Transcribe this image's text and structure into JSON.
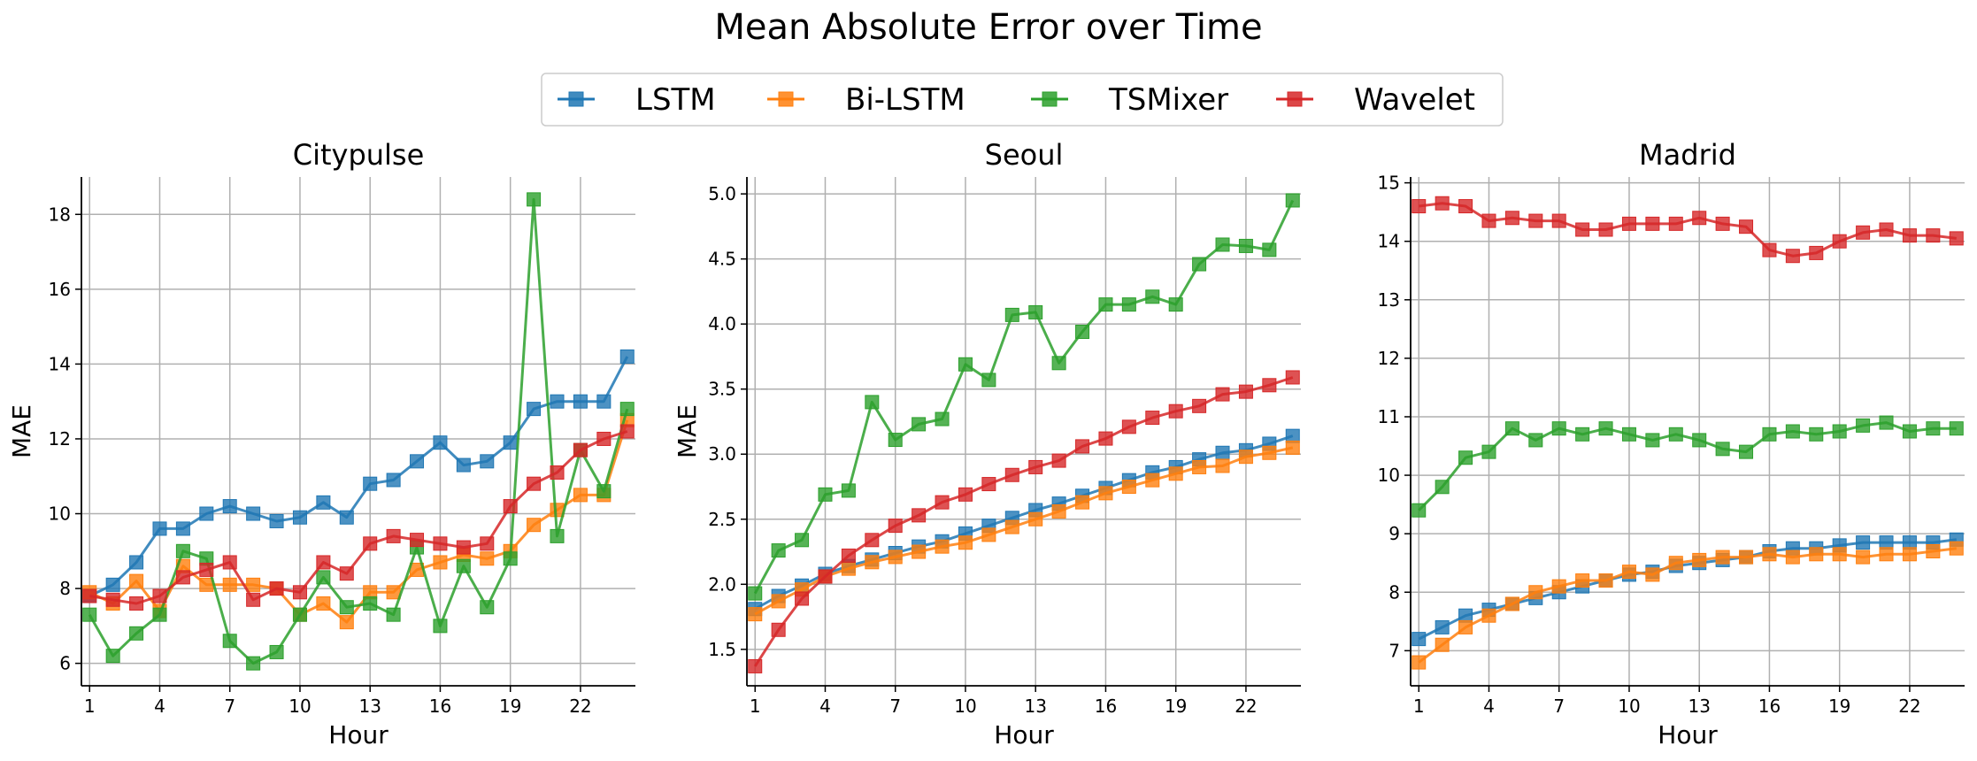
{
  "figure": {
    "title": "Mean Absolute Error over Time"
  },
  "legend": {
    "placement": "top-center",
    "entries": [
      {
        "name": "LSTM",
        "color": "#1f77b4"
      },
      {
        "name": "Bi-LSTM",
        "color": "#ff7f0e"
      },
      {
        "name": "TSMixer",
        "color": "#2ca02c"
      },
      {
        "name": "Wavelet",
        "color": "#d62728"
      }
    ]
  },
  "chart_data": [
    {
      "type": "line",
      "title": "Citypulse",
      "xlabel": "Hour",
      "ylabel": "MAE",
      "x": [
        1,
        2,
        3,
        4,
        5,
        6,
        7,
        8,
        9,
        10,
        11,
        12,
        13,
        14,
        15,
        16,
        17,
        18,
        19,
        20,
        21,
        22,
        23,
        24
      ],
      "xticks": [
        1,
        4,
        7,
        10,
        13,
        16,
        19,
        22
      ],
      "yticks": [
        6,
        8,
        10,
        12,
        14,
        16,
        18
      ],
      "ytick_labels": [
        "6",
        "8",
        "10",
        "12",
        "14",
        "16",
        "18"
      ],
      "ylim": [
        5.4,
        19.0
      ],
      "grid": true,
      "marker": "square",
      "series": [
        {
          "name": "LSTM",
          "color": "#1f77b4",
          "values": [
            7.8,
            8.1,
            8.7,
            9.6,
            9.6,
            10.0,
            10.2,
            10.0,
            9.8,
            9.9,
            10.3,
            9.9,
            10.8,
            10.9,
            11.4,
            11.9,
            11.3,
            11.4,
            11.9,
            12.8,
            13.0,
            13.0,
            13.0,
            14.2
          ]
        },
        {
          "name": "Bi-LSTM",
          "color": "#ff7f0e",
          "values": [
            7.9,
            7.6,
            8.2,
            7.4,
            8.6,
            8.1,
            8.1,
            8.1,
            8.0,
            7.3,
            7.6,
            7.1,
            7.9,
            7.9,
            8.5,
            8.7,
            8.9,
            8.8,
            9.0,
            9.7,
            10.1,
            10.5,
            10.5,
            12.5
          ]
        },
        {
          "name": "TSMixer",
          "color": "#2ca02c",
          "values": [
            7.3,
            6.2,
            6.8,
            7.3,
            9.0,
            8.8,
            6.6,
            6.0,
            6.3,
            7.3,
            8.3,
            7.5,
            7.6,
            7.3,
            9.1,
            7.0,
            8.6,
            7.5,
            8.8,
            18.4,
            9.4,
            11.7,
            10.6,
            12.8
          ]
        },
        {
          "name": "Wavelet",
          "color": "#d62728",
          "values": [
            7.8,
            7.7,
            7.6,
            7.8,
            8.3,
            8.5,
            8.7,
            7.7,
            8.0,
            7.9,
            8.7,
            8.4,
            9.2,
            9.4,
            9.3,
            9.2,
            9.1,
            9.2,
            10.2,
            10.8,
            11.1,
            11.7,
            12.0,
            12.2
          ]
        }
      ]
    },
    {
      "type": "line",
      "title": "Seoul",
      "xlabel": "Hour",
      "ylabel": "MAE",
      "x": [
        1,
        2,
        3,
        4,
        5,
        6,
        7,
        8,
        9,
        10,
        11,
        12,
        13,
        14,
        15,
        16,
        17,
        18,
        19,
        20,
        21,
        22,
        23,
        24
      ],
      "xticks": [
        1,
        4,
        7,
        10,
        13,
        16,
        19,
        22
      ],
      "yticks": [
        1.5,
        2.0,
        2.5,
        3.0,
        3.5,
        4.0,
        4.5,
        5.0
      ],
      "ytick_labels": [
        "1.5",
        "2.0",
        "2.5",
        "3.0",
        "3.5",
        "4.0",
        "4.5",
        "5.0"
      ],
      "ylim": [
        1.22,
        5.13
      ],
      "grid": true,
      "marker": "square",
      "series": [
        {
          "name": "LSTM",
          "color": "#1f77b4",
          "values": [
            1.81,
            1.91,
            1.99,
            2.08,
            2.14,
            2.19,
            2.24,
            2.29,
            2.33,
            2.39,
            2.45,
            2.51,
            2.57,
            2.62,
            2.68,
            2.74,
            2.8,
            2.86,
            2.9,
            2.96,
            3.01,
            3.03,
            3.08,
            3.14
          ]
        },
        {
          "name": "Bi-LSTM",
          "color": "#ff7f0e",
          "values": [
            1.77,
            1.87,
            1.96,
            2.06,
            2.12,
            2.17,
            2.21,
            2.25,
            2.29,
            2.32,
            2.38,
            2.44,
            2.5,
            2.56,
            2.63,
            2.7,
            2.75,
            2.8,
            2.85,
            2.9,
            2.91,
            2.98,
            3.01,
            3.05
          ]
        },
        {
          "name": "TSMixer",
          "color": "#2ca02c",
          "values": [
            1.93,
            2.26,
            2.34,
            2.69,
            2.72,
            3.4,
            3.11,
            3.23,
            3.27,
            3.69,
            3.57,
            4.07,
            4.09,
            3.7,
            3.94,
            4.15,
            4.15,
            4.21,
            4.15,
            4.46,
            4.61,
            4.6,
            4.57,
            4.95
          ]
        },
        {
          "name": "Wavelet",
          "color": "#d62728",
          "values": [
            1.37,
            1.65,
            1.89,
            2.06,
            2.22,
            2.34,
            2.45,
            2.53,
            2.63,
            2.69,
            2.77,
            2.84,
            2.9,
            2.95,
            3.06,
            3.12,
            3.21,
            3.28,
            3.33,
            3.37,
            3.46,
            3.48,
            3.53,
            3.59
          ]
        }
      ]
    },
    {
      "type": "line",
      "title": "Madrid",
      "xlabel": "Hour",
      "ylabel": "",
      "x": [
        1,
        2,
        3,
        4,
        5,
        6,
        7,
        8,
        9,
        10,
        11,
        12,
        13,
        14,
        15,
        16,
        17,
        18,
        19,
        20,
        21,
        22,
        23,
        24
      ],
      "xticks": [
        1,
        4,
        7,
        10,
        13,
        16,
        19,
        22
      ],
      "yticks": [
        7,
        8,
        9,
        10,
        11,
        12,
        13,
        14,
        15
      ],
      "ytick_labels": [
        "7",
        "8",
        "9",
        "10",
        "11",
        "12",
        "13",
        "14",
        "15"
      ],
      "ylim": [
        6.4,
        15.1
      ],
      "grid": true,
      "marker": "square",
      "series": [
        {
          "name": "LSTM",
          "color": "#1f77b4",
          "values": [
            7.2,
            7.4,
            7.6,
            7.7,
            7.8,
            7.9,
            8.0,
            8.1,
            8.2,
            8.3,
            8.35,
            8.45,
            8.5,
            8.55,
            8.6,
            8.7,
            8.75,
            8.75,
            8.8,
            8.85,
            8.85,
            8.85,
            8.85,
            8.9
          ]
        },
        {
          "name": "Bi-LSTM",
          "color": "#ff7f0e",
          "values": [
            6.8,
            7.1,
            7.4,
            7.6,
            7.8,
            8.0,
            8.1,
            8.2,
            8.2,
            8.35,
            8.3,
            8.5,
            8.55,
            8.6,
            8.6,
            8.65,
            8.6,
            8.65,
            8.65,
            8.6,
            8.65,
            8.65,
            8.7,
            8.75
          ]
        },
        {
          "name": "TSMixer",
          "color": "#2ca02c",
          "values": [
            9.4,
            9.8,
            10.3,
            10.4,
            10.8,
            10.6,
            10.8,
            10.7,
            10.8,
            10.7,
            10.6,
            10.7,
            10.6,
            10.45,
            10.4,
            10.7,
            10.75,
            10.7,
            10.75,
            10.85,
            10.9,
            10.75,
            10.8,
            10.8
          ]
        },
        {
          "name": "Wavelet",
          "color": "#d62728",
          "values": [
            14.6,
            14.65,
            14.6,
            14.35,
            14.4,
            14.35,
            14.35,
            14.2,
            14.2,
            14.3,
            14.3,
            14.3,
            14.4,
            14.3,
            14.25,
            13.85,
            13.75,
            13.8,
            14.0,
            14.15,
            14.2,
            14.1,
            14.1,
            14.05
          ]
        }
      ]
    }
  ]
}
